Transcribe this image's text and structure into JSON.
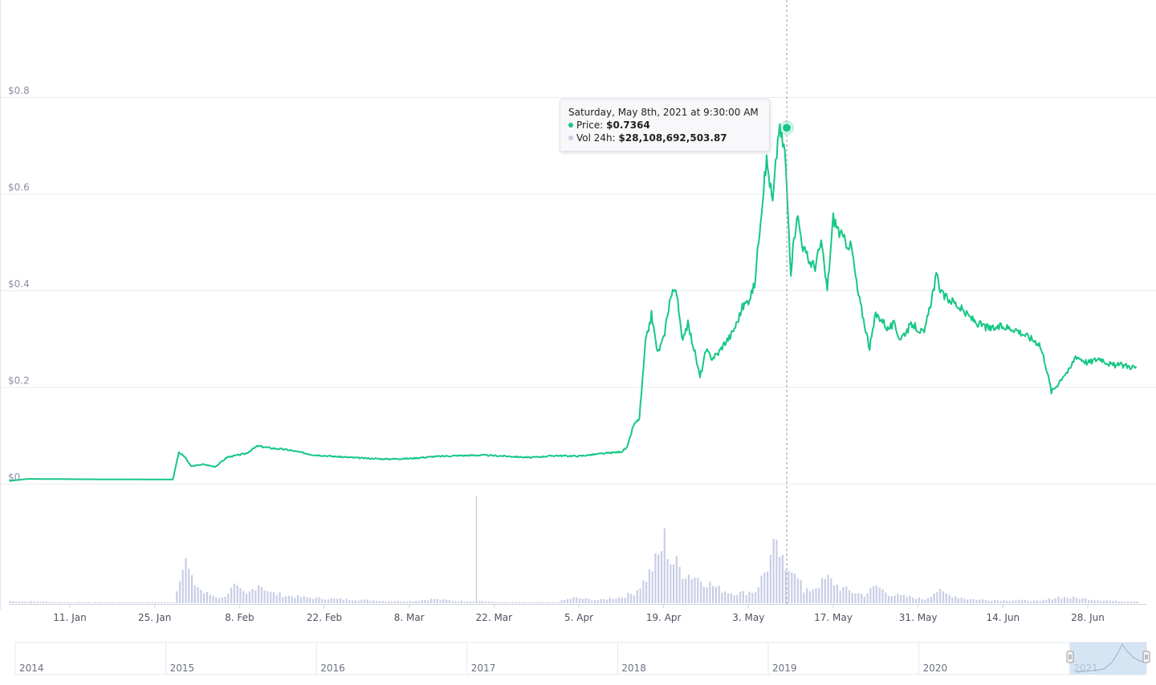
{
  "chart_data": {
    "type": "line",
    "y_axis": {
      "ticks": [
        "$0",
        "$0.2",
        "$0.4",
        "$0.6",
        "$0.8"
      ],
      "tick_values": [
        0,
        0.2,
        0.4,
        0.6,
        0.8
      ],
      "ylim": [
        0,
        1.0
      ]
    },
    "x_axis": {
      "ticks": [
        "11. Jan",
        "25. Jan",
        "8. Feb",
        "22. Feb",
        "8. Mar",
        "22. Mar",
        "5. Apr",
        "19. Apr",
        "3. May",
        "17. May",
        "31. May",
        "14. Jun",
        "28. Jun"
      ],
      "tick_dates": [
        "2021-01-11",
        "2021-01-25",
        "2021-02-08",
        "2021-02-22",
        "2021-03-08",
        "2021-03-22",
        "2021-04-05",
        "2021-04-19",
        "2021-05-03",
        "2021-05-17",
        "2021-05-31",
        "2021-06-14",
        "2021-06-28"
      ],
      "range": [
        "2021-01-01",
        "2021-07-06"
      ]
    },
    "series": [
      {
        "kind": "price",
        "color": "#16c784",
        "points": [
          [
            "2021-01-01",
            0.0057
          ],
          [
            "2021-01-04",
            0.0098
          ],
          [
            "2021-01-08",
            0.0096
          ],
          [
            "2021-01-12",
            0.0092
          ],
          [
            "2021-01-16",
            0.009
          ],
          [
            "2021-01-20",
            0.009
          ],
          [
            "2021-01-24",
            0.0088
          ],
          [
            "2021-01-28",
            0.0087
          ],
          [
            "2021-01-29",
            0.065
          ],
          [
            "2021-01-30",
            0.055
          ],
          [
            "2021-01-31",
            0.036
          ],
          [
            "2021-02-02",
            0.04
          ],
          [
            "2021-02-04",
            0.035
          ],
          [
            "2021-02-06",
            0.055
          ],
          [
            "2021-02-09",
            0.062
          ],
          [
            "2021-02-11",
            0.078
          ],
          [
            "2021-02-13",
            0.074
          ],
          [
            "2021-02-16",
            0.07
          ],
          [
            "2021-02-20",
            0.06
          ],
          [
            "2021-02-24",
            0.056
          ],
          [
            "2021-02-28",
            0.053
          ],
          [
            "2021-03-04",
            0.051
          ],
          [
            "2021-03-08",
            0.052
          ],
          [
            "2021-03-12",
            0.056
          ],
          [
            "2021-03-16",
            0.058
          ],
          [
            "2021-03-20",
            0.059
          ],
          [
            "2021-03-24",
            0.057
          ],
          [
            "2021-03-28",
            0.054
          ],
          [
            "2021-04-01",
            0.058
          ],
          [
            "2021-04-05",
            0.057
          ],
          [
            "2021-04-08",
            0.061
          ],
          [
            "2021-04-12",
            0.066
          ],
          [
            "2021-04-13",
            0.075
          ],
          [
            "2021-04-14",
            0.12
          ],
          [
            "2021-04-15",
            0.135
          ],
          [
            "2021-04-16",
            0.29
          ],
          [
            "2021-04-17",
            0.35
          ],
          [
            "2021-04-18",
            0.27
          ],
          [
            "2021-04-19",
            0.3
          ],
          [
            "2021-04-20",
            0.38
          ],
          [
            "2021-04-21",
            0.41
          ],
          [
            "2021-04-22",
            0.3
          ],
          [
            "2021-04-23",
            0.33
          ],
          [
            "2021-04-24",
            0.28
          ],
          [
            "2021-04-25",
            0.22
          ],
          [
            "2021-04-26",
            0.275
          ],
          [
            "2021-04-27",
            0.26
          ],
          [
            "2021-04-28",
            0.27
          ],
          [
            "2021-04-29",
            0.29
          ],
          [
            "2021-04-30",
            0.305
          ],
          [
            "2021-05-01",
            0.33
          ],
          [
            "2021-05-02",
            0.365
          ],
          [
            "2021-05-03",
            0.38
          ],
          [
            "2021-05-04",
            0.41
          ],
          [
            "2021-05-05",
            0.55
          ],
          [
            "2021-05-06",
            0.67
          ],
          [
            "2021-05-07",
            0.58
          ],
          [
            "2021-05-08",
            0.7364
          ],
          [
            "2021-05-09",
            0.69
          ],
          [
            "2021-05-10",
            0.44
          ],
          [
            "2021-05-11",
            0.56
          ],
          [
            "2021-05-12",
            0.49
          ],
          [
            "2021-05-13",
            0.46
          ],
          [
            "2021-05-14",
            0.45
          ],
          [
            "2021-05-15",
            0.5
          ],
          [
            "2021-05-16",
            0.4
          ],
          [
            "2021-05-17",
            0.55
          ],
          [
            "2021-05-18",
            0.52
          ],
          [
            "2021-05-19",
            0.5
          ],
          [
            "2021-05-20",
            0.49
          ],
          [
            "2021-05-21",
            0.4
          ],
          [
            "2021-05-22",
            0.34
          ],
          [
            "2021-05-23",
            0.28
          ],
          [
            "2021-05-24",
            0.35
          ],
          [
            "2021-05-25",
            0.34
          ],
          [
            "2021-05-26",
            0.32
          ],
          [
            "2021-05-27",
            0.33
          ],
          [
            "2021-05-28",
            0.3
          ],
          [
            "2021-05-30",
            0.33
          ],
          [
            "2021-06-01",
            0.31
          ],
          [
            "2021-06-02",
            0.37
          ],
          [
            "2021-06-03",
            0.43
          ],
          [
            "2021-06-04",
            0.39
          ],
          [
            "2021-06-06",
            0.375
          ],
          [
            "2021-06-08",
            0.35
          ],
          [
            "2021-06-10",
            0.33
          ],
          [
            "2021-06-12",
            0.32
          ],
          [
            "2021-06-14",
            0.325
          ],
          [
            "2021-06-16",
            0.32
          ],
          [
            "2021-06-18",
            0.305
          ],
          [
            "2021-06-20",
            0.29
          ],
          [
            "2021-06-21",
            0.25
          ],
          [
            "2021-06-22",
            0.19
          ],
          [
            "2021-06-23",
            0.205
          ],
          [
            "2021-06-24",
            0.225
          ],
          [
            "2021-06-25",
            0.235
          ],
          [
            "2021-06-26",
            0.265
          ],
          [
            "2021-06-28",
            0.25
          ],
          [
            "2021-06-30",
            0.26
          ],
          [
            "2021-07-02",
            0.245
          ],
          [
            "2021-07-04",
            0.245
          ],
          [
            "2021-07-06",
            0.24
          ]
        ]
      },
      {
        "kind": "volume",
        "color": "#c9cde6",
        "volume_scale_max": 1.0,
        "points": [
          [
            "2021-01-01",
            0.02
          ],
          [
            "2021-01-10",
            0.01
          ],
          [
            "2021-01-28",
            0.01
          ],
          [
            "2021-01-29",
            0.28
          ],
          [
            "2021-01-30",
            0.4
          ],
          [
            "2021-01-31",
            0.22
          ],
          [
            "2021-02-02",
            0.1
          ],
          [
            "2021-02-05",
            0.05
          ],
          [
            "2021-02-07",
            0.16
          ],
          [
            "2021-02-09",
            0.08
          ],
          [
            "2021-02-11",
            0.19
          ],
          [
            "2021-02-13",
            0.1
          ],
          [
            "2021-02-16",
            0.07
          ],
          [
            "2021-02-20",
            0.05
          ],
          [
            "2021-02-24",
            0.04
          ],
          [
            "2021-03-01",
            0.03
          ],
          [
            "2021-03-05",
            0.02
          ],
          [
            "2021-03-08",
            0.02
          ],
          [
            "2021-03-12",
            0.04
          ],
          [
            "2021-03-16",
            0.02
          ],
          [
            "2021-03-20",
            0.02
          ],
          [
            "2021-03-22",
            0.01
          ],
          [
            "2021-03-28",
            0.01
          ],
          [
            "2021-04-01",
            0.01
          ],
          [
            "2021-04-04",
            0.05
          ],
          [
            "2021-04-08",
            0.03
          ],
          [
            "2021-04-12",
            0.06
          ],
          [
            "2021-04-14",
            0.1
          ],
          [
            "2021-04-16",
            0.24
          ],
          [
            "2021-04-18",
            0.45
          ],
          [
            "2021-04-19",
            0.62
          ],
          [
            "2021-04-20",
            0.41
          ],
          [
            "2021-04-21",
            0.38
          ],
          [
            "2021-04-22",
            0.3
          ],
          [
            "2021-04-24",
            0.26
          ],
          [
            "2021-04-26",
            0.2
          ],
          [
            "2021-04-28",
            0.14
          ],
          [
            "2021-04-30",
            0.1
          ],
          [
            "2021-05-02",
            0.1
          ],
          [
            "2021-05-04",
            0.12
          ],
          [
            "2021-05-06",
            0.36
          ],
          [
            "2021-05-07",
            0.52
          ],
          [
            "2021-05-08",
            0.48
          ],
          [
            "2021-05-09",
            0.28
          ],
          [
            "2021-05-10",
            0.38
          ],
          [
            "2021-05-11",
            0.3
          ],
          [
            "2021-05-12",
            0.1
          ],
          [
            "2021-05-14",
            0.16
          ],
          [
            "2021-05-16",
            0.24
          ],
          [
            "2021-05-18",
            0.15
          ],
          [
            "2021-05-20",
            0.11
          ],
          [
            "2021-05-22",
            0.08
          ],
          [
            "2021-05-24",
            0.17
          ],
          [
            "2021-05-26",
            0.09
          ],
          [
            "2021-05-28",
            0.07
          ],
          [
            "2021-06-01",
            0.04
          ],
          [
            "2021-06-03",
            0.12
          ],
          [
            "2021-06-05",
            0.08
          ],
          [
            "2021-06-08",
            0.04
          ],
          [
            "2021-06-12",
            0.03
          ],
          [
            "2021-06-16",
            0.03
          ],
          [
            "2021-06-20",
            0.02
          ],
          [
            "2021-06-23",
            0.06
          ],
          [
            "2021-06-26",
            0.05
          ],
          [
            "2021-06-30",
            0.03
          ],
          [
            "2021-07-03",
            0.02
          ],
          [
            "2021-07-06",
            0.02
          ]
        ]
      }
    ],
    "crosshair_date": "2021-05-08",
    "tooltip": {
      "title": "Saturday, May 8th, 2021 at 9:30:00 AM",
      "price_label": "Price:",
      "price_value": "$0.7364",
      "volume_label": "Vol 24h:",
      "volume_value": "$28,108,692,503.87"
    },
    "navigator": {
      "year_labels": [
        "2014",
        "2015",
        "2016",
        "2017",
        "2018",
        "2019",
        "2020",
        "2021"
      ]
    },
    "grid": true,
    "legend": "none"
  }
}
